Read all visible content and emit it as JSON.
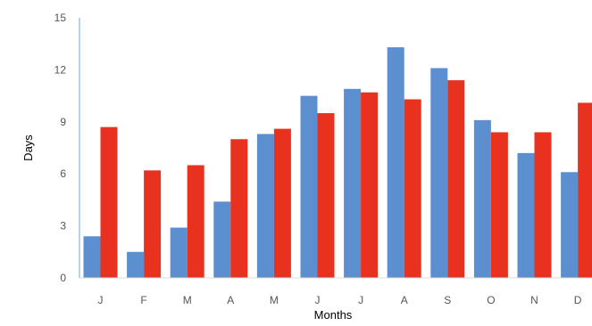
{
  "chart_data": {
    "type": "bar",
    "title": "",
    "xlabel": "Months",
    "ylabel": "Days",
    "categories": [
      "J",
      "F",
      "M",
      "A",
      "M",
      "J",
      "J",
      "A",
      "S",
      "O",
      "N",
      "D"
    ],
    "series": [
      {
        "color": "#5b8fd0",
        "values": [
          2.4,
          1.5,
          2.9,
          4.4,
          8.3,
          10.5,
          10.9,
          13.3,
          12.1,
          9.1,
          7.2,
          6.1
        ]
      },
      {
        "color": "#e8321f",
        "values": [
          8.7,
          6.2,
          6.5,
          8.0,
          8.6,
          9.5,
          10.7,
          10.3,
          11.4,
          8.4,
          8.4,
          10.1
        ]
      }
    ],
    "ylim": [
      0,
      15
    ],
    "yticks": [
      0,
      3,
      6,
      9,
      12,
      15
    ],
    "grid": false,
    "legend": "none"
  }
}
